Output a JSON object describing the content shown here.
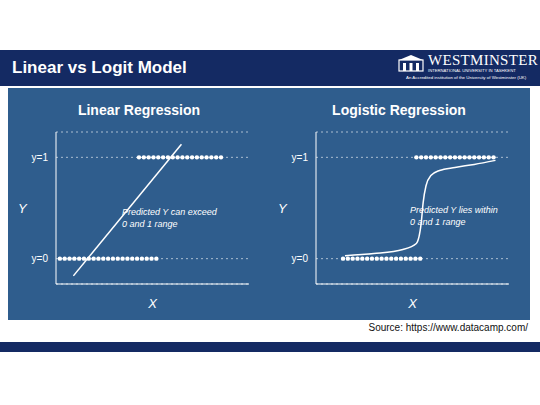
{
  "header": {
    "title": "Linear vs Logit Model",
    "logo": "WESTMINSTER",
    "logo_subtitle": "INTERNATIONAL UNIVERSITY IN TASHKENT",
    "tagline": "An Accredited institution of the University of Westminster (UK)"
  },
  "source": "Source: https://www.datacamp.com/",
  "chart_data": [
    {
      "type": "scatter",
      "title": "Linear Regression",
      "x_label": "X",
      "y_label": "Y",
      "xlim": [
        0,
        10
      ],
      "ylim": [
        -0.25,
        1.25
      ],
      "yticks": [
        {
          "value": 0,
          "label": "y=0"
        },
        {
          "value": 1,
          "label": "y=1"
        }
      ],
      "tick_labels": "y",
      "grid": true,
      "annotation": [
        "Predicted Y can exceed",
        "0 and 1 range"
      ],
      "series": [
        {
          "type": "scatter",
          "color": "#ffffff",
          "marker": "circle",
          "x": [
            0.2,
            0.45,
            0.7,
            0.95,
            1.2,
            1.45,
            1.7,
            1.95,
            2.2,
            2.45,
            2.7,
            2.95,
            3.2,
            3.45,
            3.7,
            3.95,
            4.2,
            4.45,
            4.7,
            4.95,
            5.2
          ],
          "values": [
            0,
            0,
            0,
            0,
            0,
            0,
            0,
            0,
            0,
            0,
            0,
            0,
            0,
            0,
            0,
            0,
            0,
            0,
            0,
            0,
            0
          ]
        },
        {
          "type": "scatter",
          "color": "#ffffff",
          "marker": "circle",
          "x": [
            4.3,
            4.55,
            4.8,
            5.05,
            5.3,
            5.55,
            5.8,
            6.05,
            6.3,
            6.55,
            6.8,
            7.05,
            7.3,
            7.55,
            7.8,
            8.05,
            8.3,
            8.55
          ],
          "values": [
            1,
            1,
            1,
            1,
            1,
            1,
            1,
            1,
            1,
            1,
            1,
            1,
            1,
            1,
            1,
            1,
            1,
            1
          ]
        },
        {
          "type": "line",
          "color": "#ffffff",
          "line_style": "solid",
          "x": [
            0.9,
            6.5
          ],
          "values": [
            -0.17,
            1.13
          ]
        }
      ]
    },
    {
      "type": "scatter",
      "title": "Logistic Regression",
      "x_label": "X",
      "y_label": "Y",
      "xlim": [
        0,
        10
      ],
      "ylim": [
        -0.25,
        1.25
      ],
      "yticks": [
        {
          "value": 0,
          "label": "y=0"
        },
        {
          "value": 1,
          "label": "y=1"
        }
      ],
      "tick_labels": "y",
      "grid": true,
      "annotation": [
        "Predicted Y lies within",
        "0 and 1 range"
      ],
      "series": [
        {
          "type": "scatter",
          "color": "#ffffff",
          "marker": "circle",
          "x": [
            1.4,
            1.65,
            1.9,
            2.15,
            2.4,
            2.65,
            2.9,
            3.15,
            3.4,
            3.65,
            3.9,
            4.15,
            4.4,
            4.65,
            4.9,
            5.15,
            5.4
          ],
          "values": [
            0,
            0,
            0,
            0,
            0,
            0,
            0,
            0,
            0,
            0,
            0,
            0,
            0,
            0,
            0,
            0,
            0
          ]
        },
        {
          "type": "scatter",
          "color": "#ffffff",
          "marker": "circle",
          "x": [
            5.2,
            5.45,
            5.7,
            5.95,
            6.2,
            6.45,
            6.7,
            6.95,
            7.2,
            7.45,
            7.7,
            7.95,
            8.2,
            8.45,
            8.7,
            8.95,
            9.2
          ],
          "values": [
            1,
            1,
            1,
            1,
            1,
            1,
            1,
            1,
            1,
            1,
            1,
            1,
            1,
            1,
            1,
            1,
            1
          ]
        },
        {
          "type": "line",
          "color": "#ffffff",
          "line_style": "solid",
          "x": [
            1.5,
            3,
            4.5,
            5.2,
            5.45,
            5.55,
            5.7,
            5.95,
            6.4,
            7.2,
            8.2,
            9.3
          ],
          "values": [
            0.03,
            0.05,
            0.09,
            0.15,
            0.35,
            0.55,
            0.72,
            0.82,
            0.87,
            0.9,
            0.93,
            0.97
          ]
        }
      ]
    }
  ]
}
